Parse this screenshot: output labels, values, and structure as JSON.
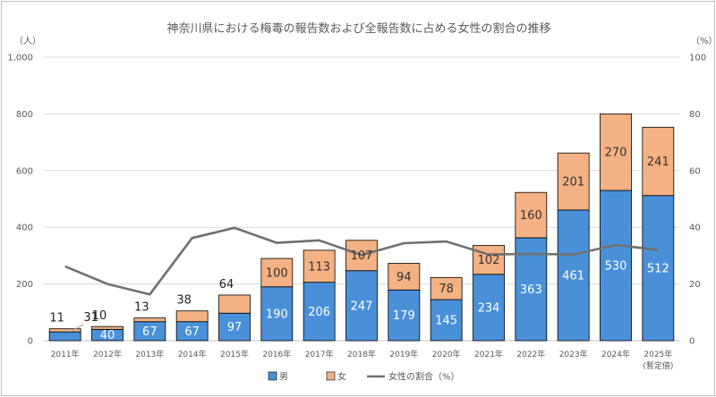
{
  "chart_data": {
    "type": "bar",
    "title": "神奈川県における梅毒の報告数および全報告数に占める女性の割合の推移",
    "categories": [
      "2011年",
      "2012年",
      "2013年",
      "2014年",
      "2015年",
      "2016年",
      "2017年",
      "2018年",
      "2019年",
      "2020年",
      "2021年",
      "2022年",
      "2023年",
      "2024年",
      "2025年"
    ],
    "category_note": "(暫定値)",
    "left_unit": "（人）",
    "right_unit": "（%）",
    "ylim": [
      0,
      1000
    ],
    "yticks": [
      "0",
      "200",
      "400",
      "600",
      "800",
      "1,000"
    ],
    "y2lim": [
      0,
      100
    ],
    "y2ticks": [
      "0",
      "20",
      "40",
      "60",
      "80",
      "100"
    ],
    "series": [
      {
        "name": "男",
        "type": "bar",
        "color": "#4a90d9",
        "values": [
          31,
          40,
          67,
          67,
          97,
          190,
          206,
          247,
          179,
          145,
          234,
          363,
          461,
          530,
          512
        ]
      },
      {
        "name": "女",
        "type": "bar",
        "color": "#f4b183",
        "values": [
          11,
          10,
          13,
          38,
          64,
          100,
          113,
          107,
          94,
          78,
          102,
          160,
          201,
          270,
          241
        ]
      },
      {
        "name": "女性の割合（%）",
        "type": "line",
        "color": "#707070",
        "axis": "right",
        "values": [
          26.2,
          20.0,
          16.3,
          36.2,
          39.8,
          34.5,
          35.4,
          30.2,
          34.4,
          35.0,
          30.4,
          30.6,
          30.4,
          33.8,
          32.0
        ]
      }
    ],
    "legend_position": "bottom"
  }
}
